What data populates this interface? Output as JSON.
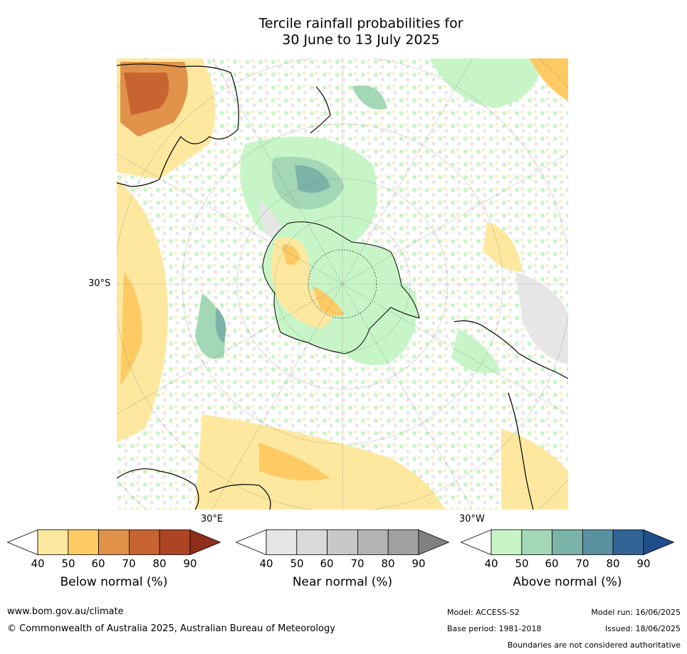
{
  "title_line1": "Tercile rainfall probabilities for",
  "title_line2": "30 June to 13 July 2025",
  "map": {
    "lat_label": "30°S",
    "lon_label_e": "30°E",
    "lon_label_w": "30°W"
  },
  "legends": [
    {
      "title": "Below normal (%)",
      "ticks": [
        "40",
        "50",
        "60",
        "70",
        "80",
        "90"
      ],
      "colors": [
        "#ffffff",
        "#fee8a0",
        "#fdca64",
        "#e0924a",
        "#c8642f",
        "#ad4424",
        "#8f2e1a"
      ]
    },
    {
      "title": "Near normal (%)",
      "ticks": [
        "40",
        "50",
        "60",
        "70",
        "80",
        "90"
      ],
      "colors": [
        "#ffffff",
        "#e6e6e6",
        "#d9d9d9",
        "#c8c8c8",
        "#b4b4b4",
        "#a0a0a0",
        "#808080"
      ]
    },
    {
      "title": "Above normal (%)",
      "ticks": [
        "40",
        "50",
        "60",
        "70",
        "80",
        "90"
      ],
      "colors": [
        "#ffffff",
        "#c8f5c8",
        "#a3d7b5",
        "#7bb3a8",
        "#5a90a0",
        "#326496",
        "#1f4e8a"
      ]
    }
  ],
  "footer": {
    "website": "www.bom.gov.au/climate",
    "copyright": "© Commonwealth of Australia 2025, Australian Bureau of Meteorology",
    "model": "Model: ACCESS-S2",
    "base_period": "Base period: 1981-2018",
    "model_run": "Model run: 16/06/2025",
    "issued": "Issued: 18/06/2025",
    "disclaimer": "Boundaries are not considered authoritative"
  }
}
